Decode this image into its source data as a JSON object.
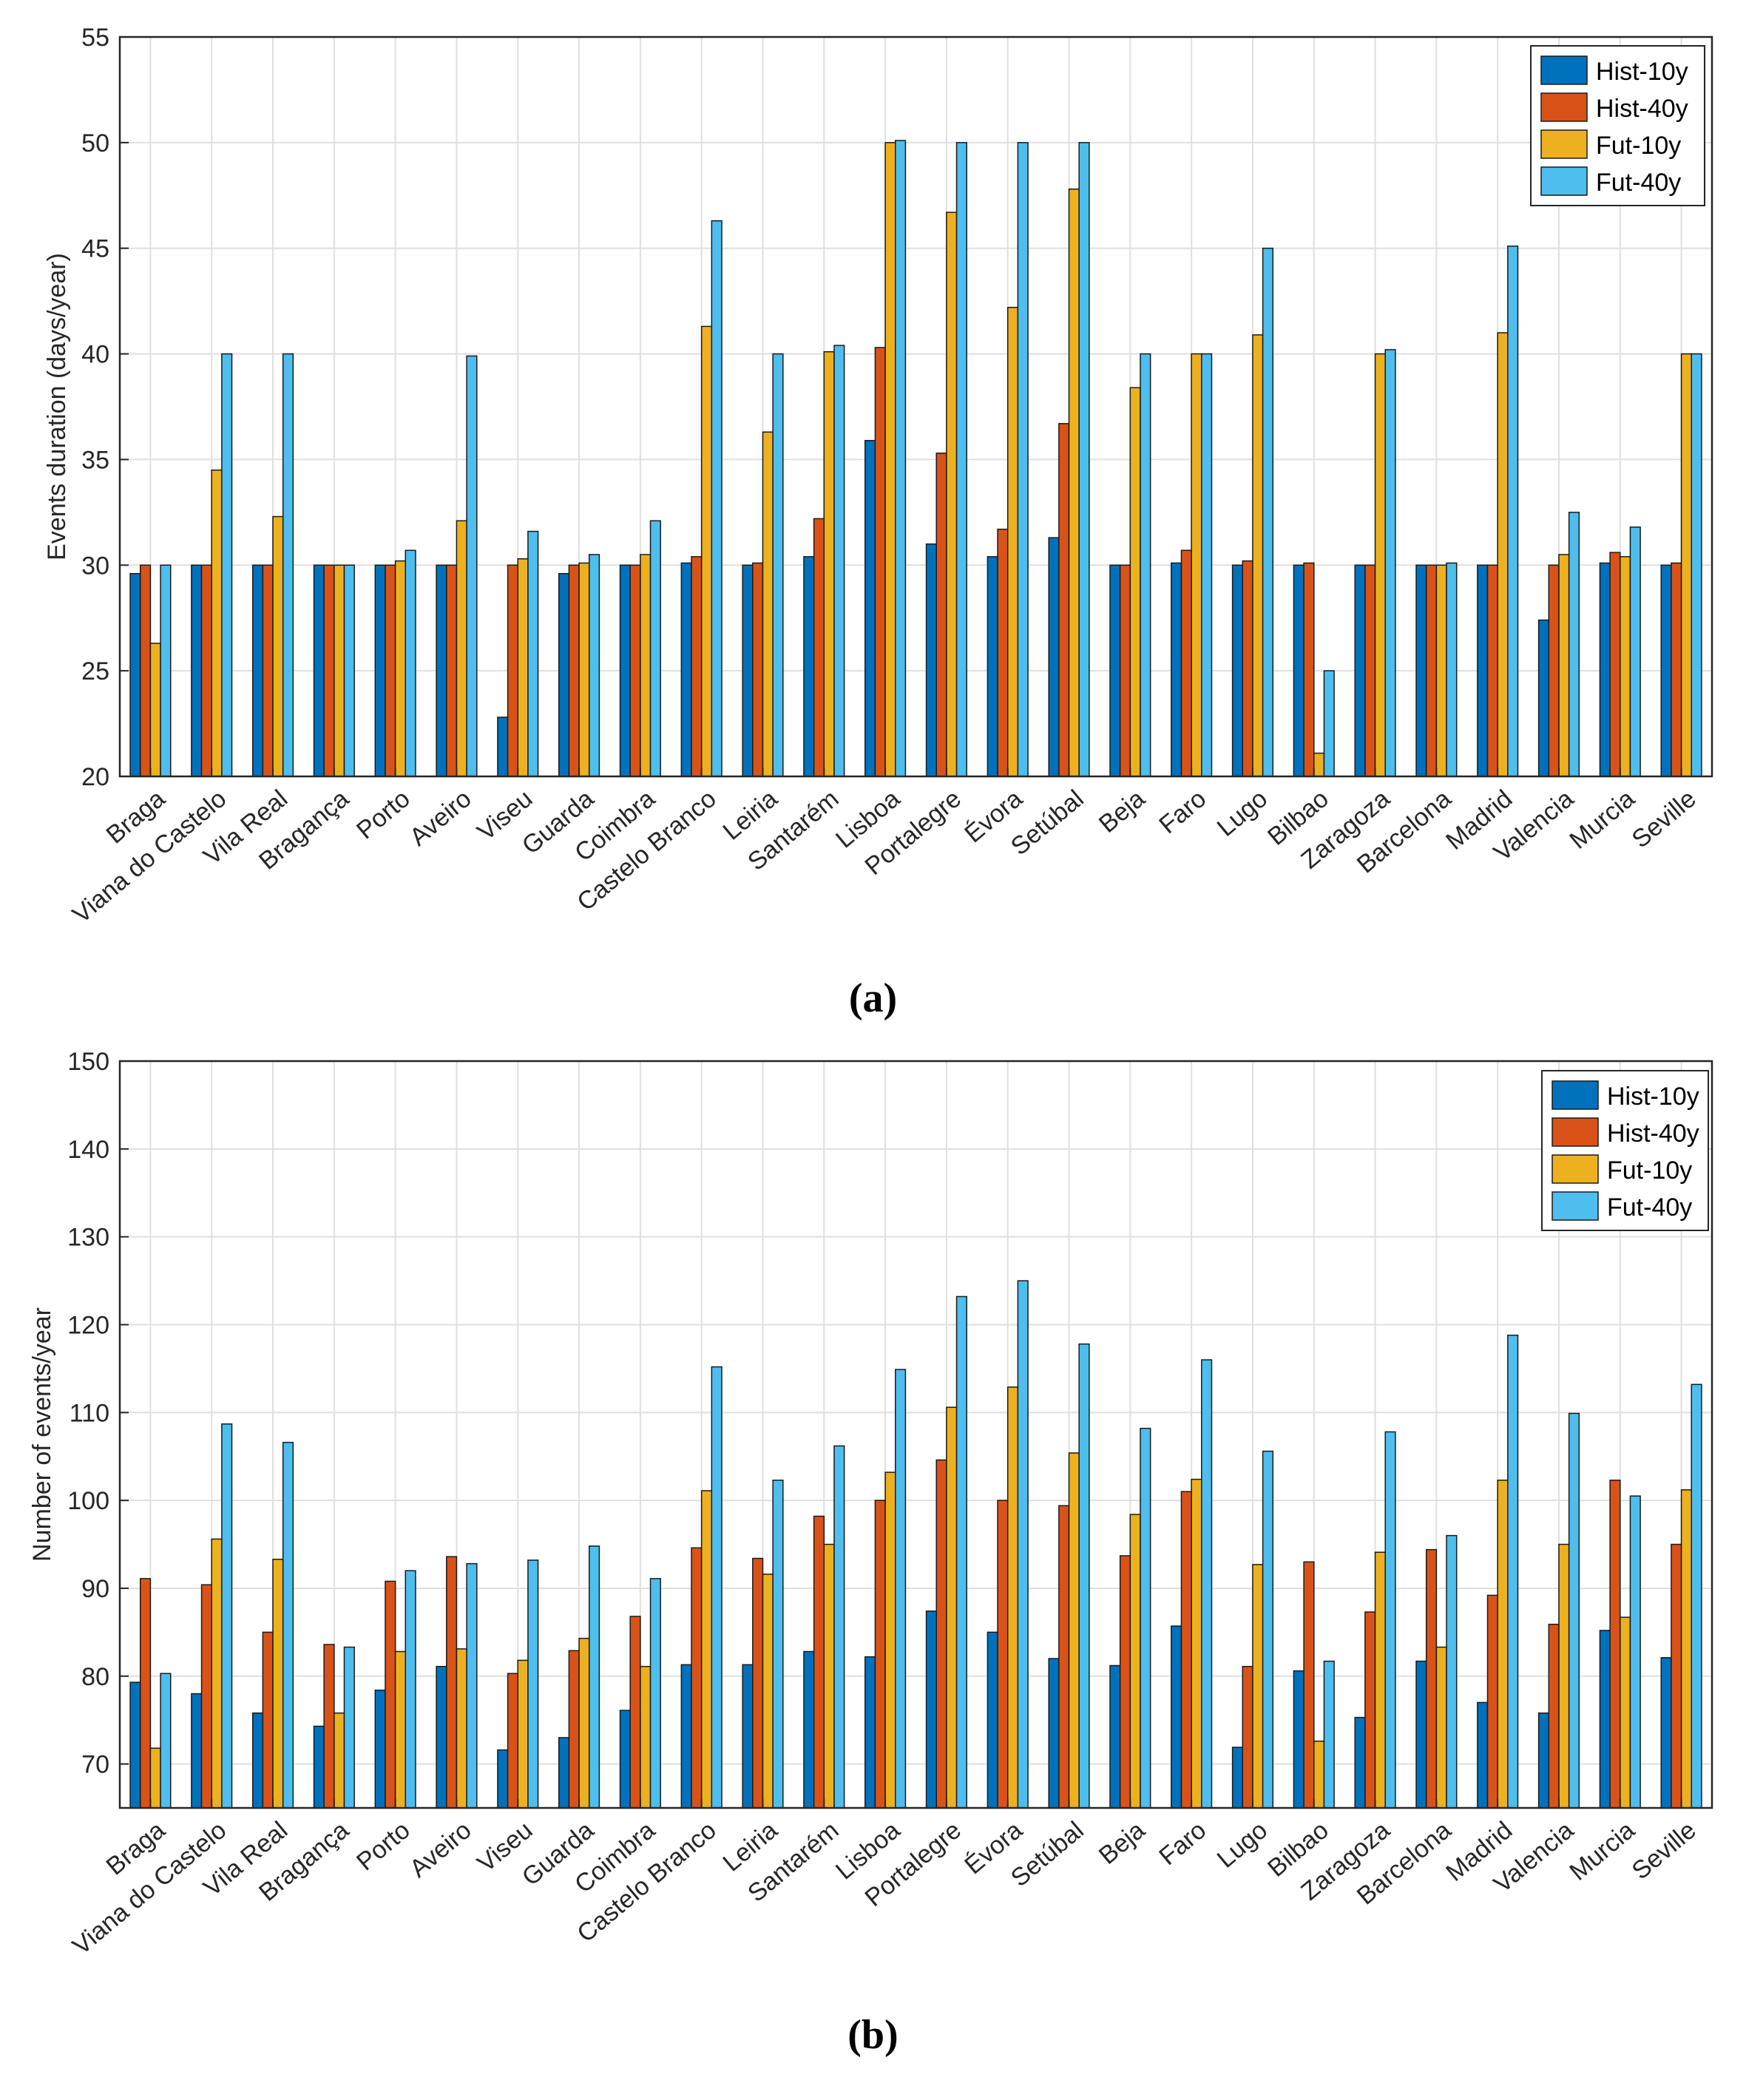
{
  "colors": {
    "series": [
      "#0072BD",
      "#D95319",
      "#EDB120",
      "#4DBEEE"
    ],
    "axis": "#262626",
    "grid": "#dfdfdf"
  },
  "captions": [
    "(a)",
    "(b)"
  ],
  "chart_data": [
    {
      "type": "bar",
      "title": "",
      "xlabel": "",
      "ylabel": "Events duration (days/year)",
      "ylim": [
        20,
        55
      ],
      "yticks": [
        20,
        25,
        30,
        35,
        40,
        45,
        50,
        55
      ],
      "grid": true,
      "legend": "top-right",
      "categories": [
        "Braga",
        "Viana do Castelo",
        "Vila Real",
        "Bragança",
        "Porto",
        "Aveiro",
        "Viseu",
        "Guarda",
        "Coimbra",
        "Castelo Branco",
        "Leiria",
        "Santarém",
        "Lisboa",
        "Portalegre",
        "Évora",
        "Setúbal",
        "Beja",
        "Faro",
        "Lugo",
        "Bilbao",
        "Zaragoza",
        "Barcelona",
        "Madrid",
        "Valencia",
        "Murcia",
        "Seville"
      ],
      "series": [
        {
          "name": "Hist-10y",
          "values": [
            29.6,
            30,
            30,
            30,
            30,
            30,
            22.8,
            29.6,
            30,
            30.1,
            30,
            30.4,
            35.9,
            31,
            30.4,
            31.3,
            30,
            30.1,
            30,
            30,
            30,
            30,
            30,
            27.4,
            30.1,
            30
          ]
        },
        {
          "name": "Hist-40y",
          "values": [
            30,
            30,
            30,
            30,
            30,
            30,
            30,
            30,
            30,
            30.4,
            30.1,
            32.2,
            40.3,
            35.3,
            31.7,
            36.7,
            30,
            30.7,
            30.2,
            30.1,
            30,
            30,
            30,
            30,
            30.6,
            30.1
          ]
        },
        {
          "name": "Fut-10y",
          "values": [
            26.3,
            34.5,
            32.3,
            30,
            30.2,
            32.1,
            30.3,
            30.1,
            30.5,
            41.3,
            36.3,
            40.1,
            50,
            46.7,
            42.2,
            47.8,
            38.4,
            40,
            40.9,
            21.1,
            40,
            30,
            41,
            30.5,
            30.4,
            40
          ]
        },
        {
          "name": "Fut-40y",
          "values": [
            30,
            40,
            40,
            30,
            30.7,
            39.9,
            31.6,
            30.5,
            32.1,
            46.3,
            40,
            40.4,
            50.1,
            50,
            50,
            50,
            40,
            40,
            45,
            25,
            40.2,
            30.1,
            45.1,
            32.5,
            31.8,
            40
          ]
        }
      ]
    },
    {
      "type": "bar",
      "title": "",
      "xlabel": "",
      "ylabel": "Number of events/year",
      "ylim": [
        65,
        150
      ],
      "yticks": [
        70,
        80,
        90,
        100,
        110,
        120,
        130,
        140,
        150
      ],
      "grid": true,
      "legend": "top-right",
      "categories": [
        "Braga",
        "Viana do Castelo",
        "Vila Real",
        "Bragança",
        "Porto",
        "Aveiro",
        "Viseu",
        "Guarda",
        "Coimbra",
        "Castelo Branco",
        "Leiria",
        "Santarém",
        "Lisboa",
        "Portalegre",
        "Évora",
        "Setúbal",
        "Beja",
        "Faro",
        "Lugo",
        "Bilbao",
        "Zaragoza",
        "Barcelona",
        "Madrid",
        "Valencia",
        "Murcia",
        "Seville"
      ],
      "series": [
        {
          "name": "Hist-10y",
          "values": [
            79.3,
            78,
            75.8,
            74.3,
            78.4,
            81.1,
            71.6,
            73,
            76.1,
            81.3,
            81.3,
            82.8,
            82.2,
            87.4,
            85,
            82,
            81.2,
            85.7,
            71.9,
            80.6,
            75.3,
            81.7,
            77,
            75.8,
            85.2,
            82.1
          ]
        },
        {
          "name": "Hist-40y",
          "values": [
            91.1,
            90.4,
            85,
            83.6,
            90.8,
            93.6,
            80.3,
            82.9,
            86.8,
            94.6,
            93.4,
            98.2,
            100,
            104.6,
            100,
            99.4,
            93.7,
            101,
            81.1,
            93,
            87.3,
            94.4,
            89.2,
            85.9,
            102.3,
            95
          ]
        },
        {
          "name": "Fut-10y",
          "values": [
            71.8,
            95.6,
            93.3,
            75.8,
            82.8,
            83.1,
            81.8,
            84.3,
            81.1,
            101.1,
            91.6,
            95,
            103.2,
            110.6,
            112.9,
            105.4,
            98.4,
            102.4,
            92.7,
            72.6,
            94.1,
            83.3,
            102.3,
            95,
            86.7,
            101.2
          ]
        },
        {
          "name": "Fut-40y",
          "values": [
            80.3,
            108.7,
            106.6,
            83.3,
            92,
            92.8,
            93.2,
            94.8,
            91.1,
            115.2,
            102.3,
            106.2,
            114.9,
            123.2,
            125,
            117.8,
            108.2,
            116,
            105.6,
            81.7,
            107.8,
            96,
            118.8,
            109.9,
            100.5,
            113.2
          ]
        }
      ]
    }
  ]
}
